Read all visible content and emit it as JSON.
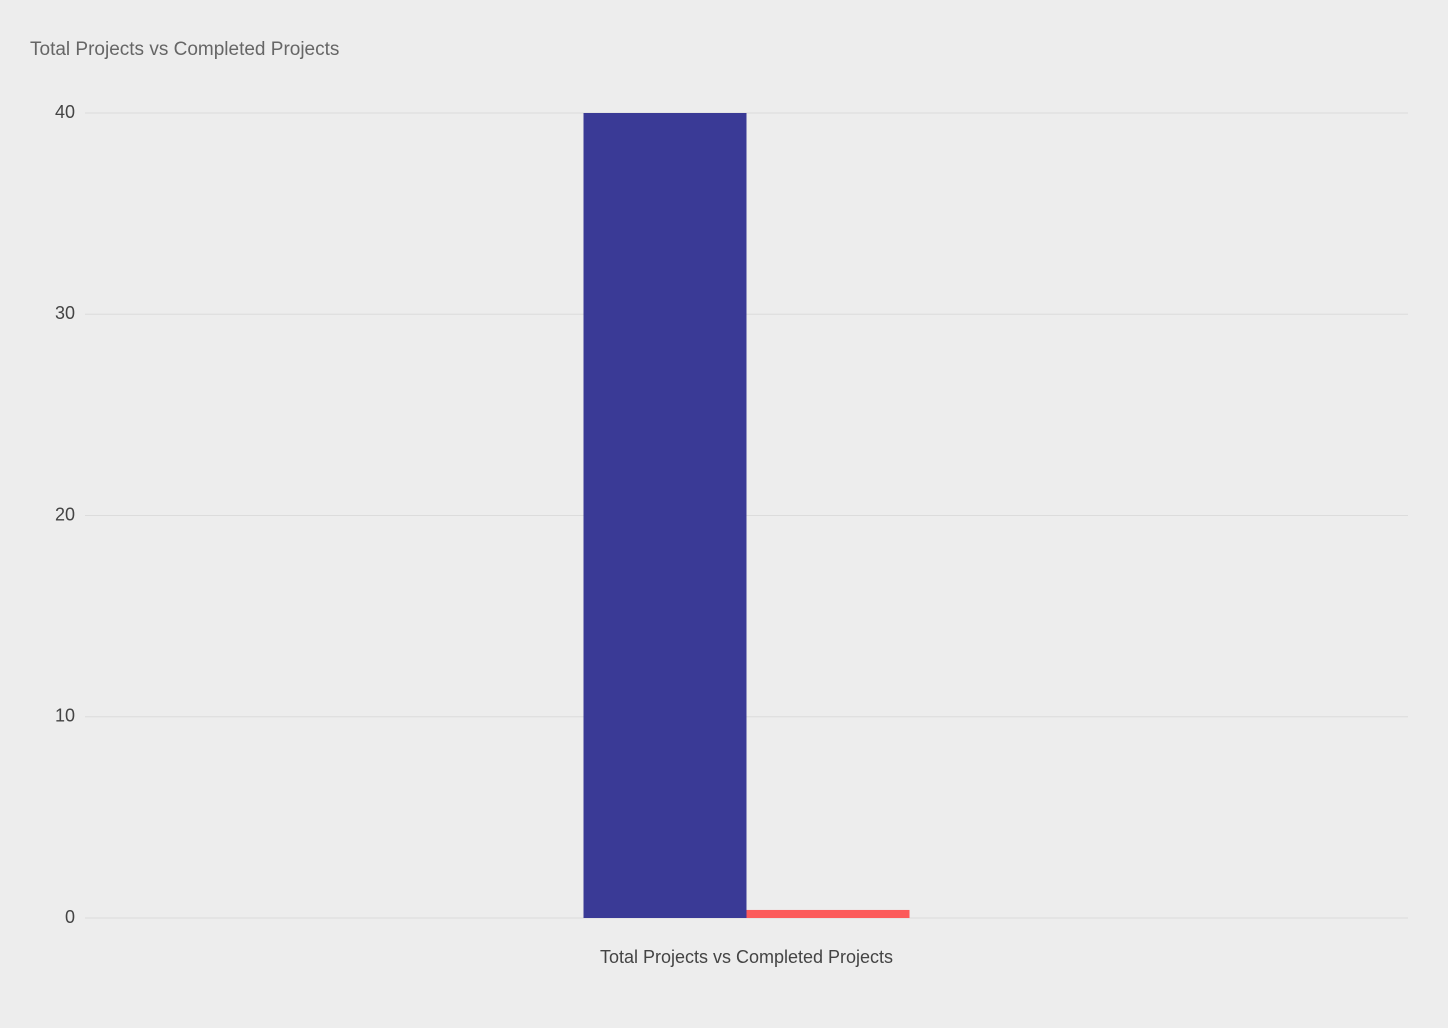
{
  "chart_data": {
    "type": "bar",
    "title": "Total Projects vs Completed Projects",
    "categories": [
      "Total Projects vs Completed Projects"
    ],
    "series": [
      {
        "color": "#3a3a96",
        "values": [
          40
        ]
      },
      {
        "color": "#fc5b5b",
        "values": [
          0.4
        ]
      }
    ],
    "ylim": [
      0,
      40
    ],
    "yticks": [
      0,
      10,
      20,
      30,
      40
    ],
    "grid": true
  }
}
